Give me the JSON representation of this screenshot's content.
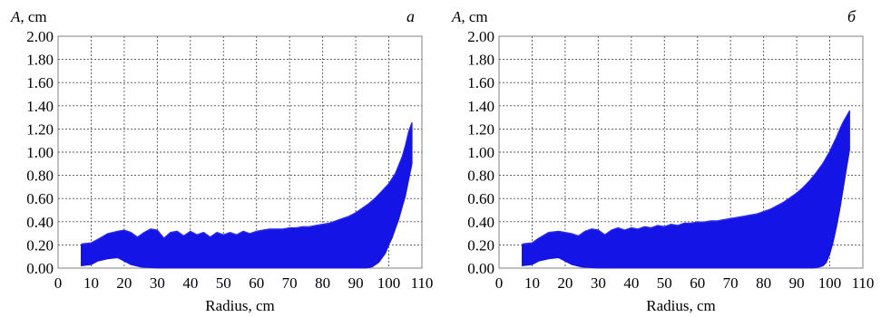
{
  "chart_data": [
    {
      "type": "area",
      "panel_label": "a",
      "ylabel_symbol": "A",
      "ylabel_unit": ", cm",
      "xlabel": "Radius, cm",
      "xlim": [
        0,
        110
      ],
      "ylim": [
        0,
        2.0
      ],
      "x_ticks": [
        "0",
        "10",
        "20",
        "30",
        "40",
        "50",
        "60",
        "70",
        "80",
        "90",
        "100",
        "110"
      ],
      "y_ticks": [
        "0.00",
        "0.20",
        "0.40",
        "0.60",
        "0.80",
        "1.00",
        "1.20",
        "1.40",
        "1.60",
        "1.80",
        "2.00"
      ],
      "grid": true,
      "fill_color": "#1414e6",
      "upper": {
        "x": [
          7,
          10,
          12,
          15,
          18,
          20,
          22,
          24,
          26,
          28,
          30,
          32,
          34,
          36,
          38,
          40,
          42,
          44,
          46,
          48,
          50,
          52,
          54,
          56,
          58,
          60,
          62,
          64,
          66,
          68,
          70,
          72,
          74,
          76,
          78,
          80,
          82,
          84,
          86,
          88,
          90,
          92,
          94,
          96,
          98,
          100,
          102,
          104,
          105,
          106,
          107
        ],
        "y": [
          0.2,
          0.21,
          0.24,
          0.29,
          0.31,
          0.32,
          0.3,
          0.26,
          0.3,
          0.33,
          0.32,
          0.25,
          0.3,
          0.31,
          0.27,
          0.31,
          0.28,
          0.3,
          0.26,
          0.3,
          0.28,
          0.3,
          0.28,
          0.31,
          0.29,
          0.31,
          0.32,
          0.33,
          0.33,
          0.33,
          0.34,
          0.34,
          0.35,
          0.35,
          0.36,
          0.37,
          0.38,
          0.4,
          0.42,
          0.44,
          0.47,
          0.51,
          0.55,
          0.6,
          0.66,
          0.72,
          0.81,
          0.95,
          1.05,
          1.17,
          1.25
        ]
      },
      "lower": {
        "x": [
          7,
          10,
          12,
          15,
          18,
          20,
          22,
          25,
          30,
          40,
          50,
          60,
          70,
          80,
          90,
          93,
          95,
          97,
          99,
          100,
          101,
          102,
          103,
          104,
          105,
          106,
          107
        ],
        "y": [
          0.02,
          0.03,
          0.06,
          0.08,
          0.09,
          0.06,
          0.03,
          0.01,
          0.0,
          0.0,
          0.0,
          0.0,
          0.0,
          0.0,
          0.0,
          0.0,
          0.01,
          0.05,
          0.13,
          0.2,
          0.26,
          0.34,
          0.42,
          0.52,
          0.62,
          0.76,
          0.9
        ]
      }
    },
    {
      "type": "area",
      "panel_label": "б",
      "ylabel_symbol": "A",
      "ylabel_unit": ", cm",
      "xlabel": "Radius, cm",
      "xlim": [
        0,
        110
      ],
      "ylim": [
        0,
        2.0
      ],
      "x_ticks": [
        "0",
        "10",
        "20",
        "30",
        "40",
        "50",
        "60",
        "70",
        "80",
        "90",
        "100",
        "110"
      ],
      "y_ticks": [
        "0.00",
        "0.20",
        "0.40",
        "0.60",
        "0.80",
        "1.00",
        "1.20",
        "1.40",
        "1.60",
        "1.80",
        "2.00"
      ],
      "grid": true,
      "fill_color": "#1414e6",
      "upper": {
        "x": [
          7,
          10,
          12,
          15,
          18,
          20,
          22,
          24,
          26,
          28,
          30,
          32,
          34,
          36,
          38,
          40,
          42,
          44,
          46,
          48,
          50,
          52,
          54,
          56,
          58,
          60,
          62,
          64,
          66,
          68,
          70,
          72,
          74,
          76,
          78,
          80,
          82,
          84,
          86,
          88,
          90,
          92,
          94,
          96,
          98,
          100,
          102,
          103,
          104,
          105,
          106
        ],
        "y": [
          0.2,
          0.21,
          0.25,
          0.3,
          0.31,
          0.3,
          0.29,
          0.27,
          0.31,
          0.33,
          0.32,
          0.28,
          0.32,
          0.34,
          0.32,
          0.34,
          0.33,
          0.35,
          0.34,
          0.36,
          0.35,
          0.37,
          0.36,
          0.38,
          0.38,
          0.39,
          0.39,
          0.4,
          0.4,
          0.41,
          0.42,
          0.43,
          0.44,
          0.45,
          0.46,
          0.48,
          0.5,
          0.53,
          0.56,
          0.6,
          0.64,
          0.69,
          0.75,
          0.82,
          0.9,
          1.0,
          1.12,
          1.19,
          1.25,
          1.3,
          1.35
        ]
      },
      "lower": {
        "x": [
          7,
          10,
          12,
          15,
          18,
          20,
          22,
          25,
          30,
          40,
          50,
          60,
          70,
          80,
          90,
          95,
          97,
          98,
          99,
          100,
          101,
          102,
          103,
          104,
          105,
          106
        ],
        "y": [
          0.02,
          0.03,
          0.06,
          0.08,
          0.09,
          0.06,
          0.03,
          0.01,
          0.0,
          0.0,
          0.0,
          0.0,
          0.0,
          0.0,
          0.0,
          0.0,
          0.01,
          0.02,
          0.05,
          0.12,
          0.22,
          0.35,
          0.5,
          0.67,
          0.85,
          1.02
        ]
      }
    }
  ]
}
